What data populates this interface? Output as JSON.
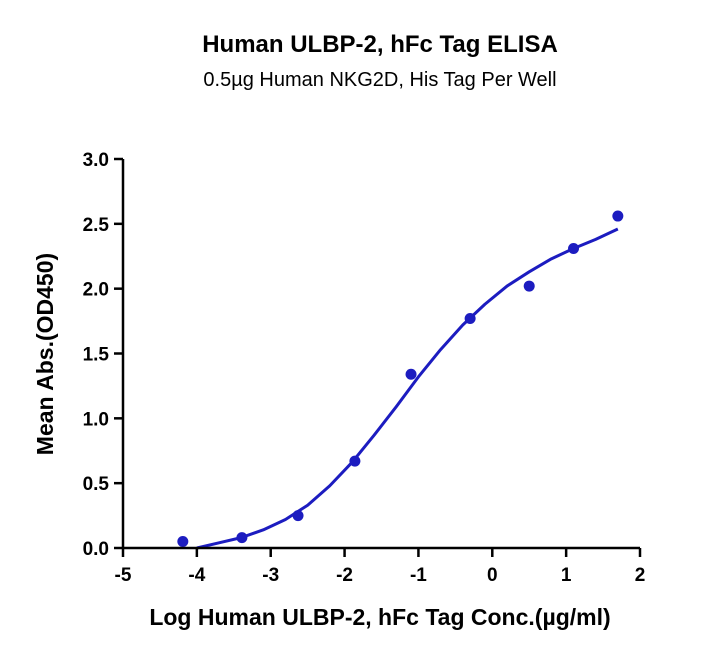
{
  "chart_data": {
    "type": "scatter",
    "title": "Human ULBP-2, hFc Tag ELISA",
    "subtitle": "0.5µg Human NKG2D, His Tag Per Well",
    "xlabel": "Log Human ULBP-2, hFc Tag Conc.(µg/ml)",
    "ylabel": "Mean Abs.(OD450)",
    "xlim": [
      -5,
      2
    ],
    "ylim": [
      0,
      3
    ],
    "x_ticks": [
      -5,
      -4,
      -3,
      -2,
      -1,
      0,
      1,
      2
    ],
    "y_ticks": [
      0.0,
      0.5,
      1.0,
      1.5,
      2.0,
      2.5,
      3.0
    ],
    "x_tick_labels": [
      "-5",
      "-4",
      "-3",
      "-2",
      "-1",
      "0",
      "1",
      "2"
    ],
    "y_tick_labels": [
      "0.0",
      "0.5",
      "1.0",
      "1.5",
      "2.0",
      "2.5",
      "3.0"
    ],
    "grid": false,
    "series": [
      {
        "type": "scatter",
        "color": "#1c1cc0",
        "x": [
          -4.19,
          -3.39,
          -2.63,
          -1.86,
          -1.1,
          -0.3,
          0.5,
          1.1,
          1.7
        ],
        "y": [
          0.05,
          0.08,
          0.25,
          0.67,
          1.34,
          1.77,
          2.02,
          2.31,
          2.56
        ]
      },
      {
        "type": "line",
        "color": "#1c1cc0",
        "x": [
          -4.0,
          -3.7,
          -3.4,
          -3.1,
          -2.8,
          -2.5,
          -2.2,
          -1.9,
          -1.6,
          -1.3,
          -1.0,
          -0.7,
          -0.4,
          -0.1,
          0.2,
          0.5,
          0.8,
          1.1,
          1.4,
          1.7
        ],
        "y": [
          0.0,
          0.04,
          0.08,
          0.14,
          0.22,
          0.33,
          0.48,
          0.66,
          0.87,
          1.09,
          1.32,
          1.53,
          1.72,
          1.88,
          2.02,
          2.13,
          2.23,
          2.31,
          2.38,
          2.46
        ]
      }
    ]
  }
}
